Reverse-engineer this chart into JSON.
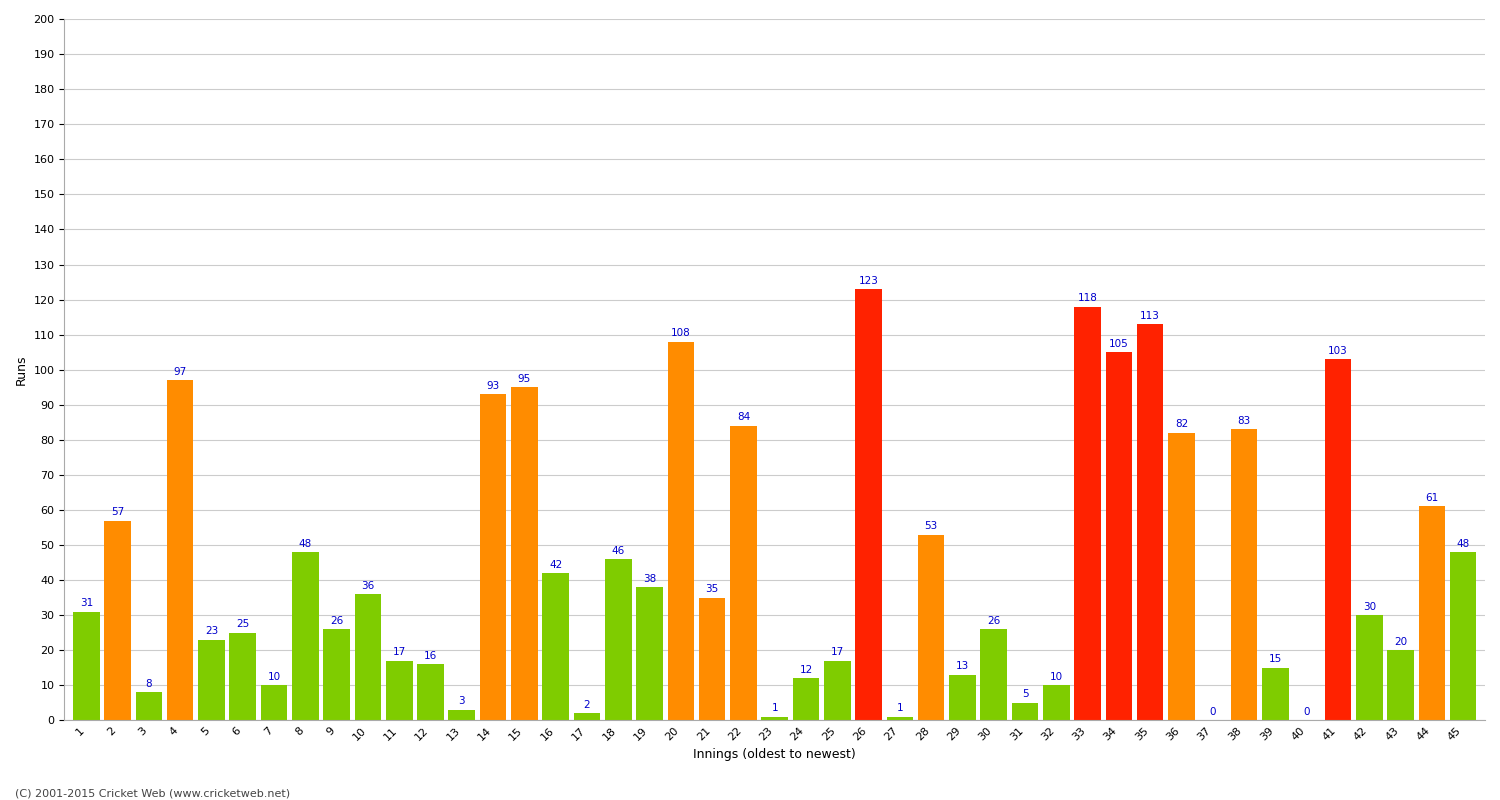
{
  "title": "",
  "xlabel": "Innings (oldest to newest)",
  "ylabel": "Runs",
  "footer": "(C) 2001-2015 Cricket Web (www.cricketweb.net)",
  "ylim": [
    0,
    200
  ],
  "yticks": [
    0,
    10,
    20,
    30,
    40,
    50,
    60,
    70,
    80,
    90,
    100,
    110,
    120,
    130,
    140,
    150,
    160,
    170,
    180,
    190,
    200
  ],
  "innings": [
    1,
    2,
    3,
    4,
    5,
    6,
    7,
    8,
    9,
    10,
    11,
    12,
    13,
    14,
    15,
    16,
    17,
    18,
    19,
    20,
    21,
    22,
    23,
    24,
    25,
    26,
    27,
    28,
    29,
    30,
    31,
    32,
    33,
    34,
    35,
    36,
    37,
    38,
    39,
    40,
    41,
    42,
    43,
    44,
    45
  ],
  "scores": [
    31,
    57,
    8,
    97,
    23,
    25,
    10,
    48,
    26,
    36,
    17,
    16,
    3,
    93,
    95,
    42,
    2,
    46,
    38,
    108,
    35,
    84,
    1,
    12,
    17,
    123,
    1,
    53,
    13,
    26,
    5,
    10,
    118,
    105,
    113,
    82,
    0,
    83,
    15,
    0,
    103,
    30,
    20,
    61,
    48
  ],
  "colors": [
    "green",
    "orange",
    "green",
    "orange",
    "green",
    "green",
    "green",
    "green",
    "green",
    "green",
    "green",
    "green",
    "green",
    "orange",
    "orange",
    "green",
    "green",
    "green",
    "green",
    "orange",
    "orange",
    "orange",
    "green",
    "green",
    "green",
    "red",
    "green",
    "orange",
    "green",
    "green",
    "green",
    "green",
    "red",
    "red",
    "red",
    "orange",
    "green",
    "orange",
    "green",
    "green",
    "red",
    "green",
    "green",
    "orange",
    "green"
  ],
  "color_map": {
    "green": "#7FCC00",
    "orange": "#FF8C00",
    "red": "#FF2200"
  },
  "label_color": "#0000CC",
  "label_fontsize": 7.5,
  "bg_color": "#FFFFFF",
  "grid_color": "#CCCCCC",
  "axis_label_fontsize": 9,
  "tick_fontsize": 8,
  "footer_fontsize": 8,
  "bar_width": 0.85
}
